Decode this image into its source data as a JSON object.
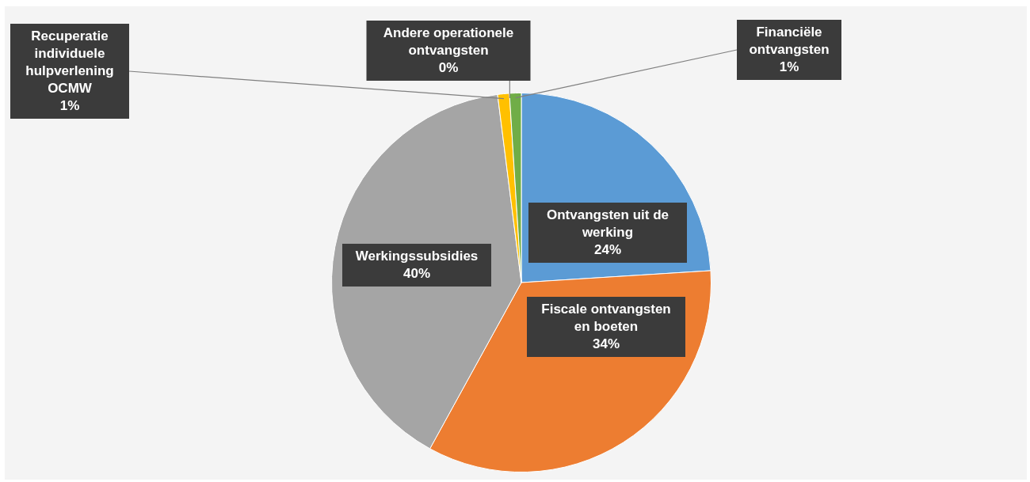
{
  "chart_data": {
    "type": "pie",
    "categories": [
      "Ontvangsten uit de werking",
      "Fiscale ontvangsten en boeten",
      "Werkingssubsidies",
      "Recuperatie individuele hulpverlening OCMW",
      "Andere operationele ontvangsten",
      "Financiële ontvangsten"
    ],
    "values": [
      24,
      34,
      40,
      1,
      0,
      1
    ],
    "value_labels": [
      "24%",
      "34%",
      "40%",
      "1%",
      "0%",
      "1%"
    ],
    "colors": [
      "#5b9bd5",
      "#ed7d31",
      "#a5a5a5",
      "#ffc000",
      "#4472c4",
      "#70ad47"
    ],
    "legend": false
  }
}
